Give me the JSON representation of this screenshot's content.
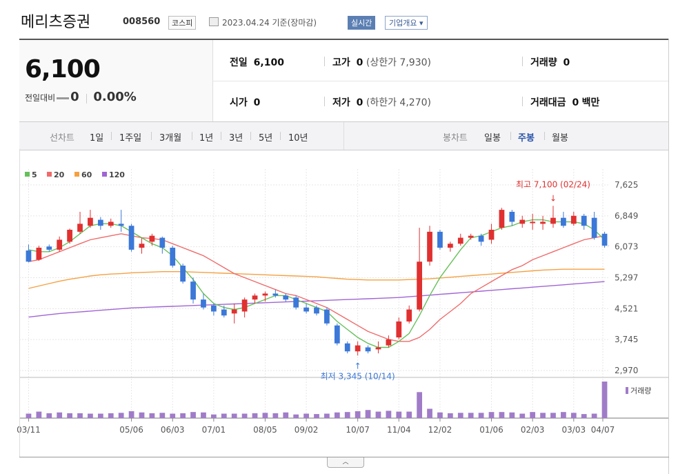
{
  "header": {
    "company": "메리츠증권",
    "code": "008560",
    "market": "코스피",
    "date": "2023.04.24 기준(장마감)",
    "live_button": "실시간",
    "company_info_button": "기업개요"
  },
  "quote": {
    "price": "6,100",
    "change_label": "전일대비",
    "change_value": "0",
    "change_pct": "0.00%",
    "prev_close_label": "전일",
    "prev_close": "6,100",
    "high_label": "고가",
    "high": "0",
    "upper_limit": "(상한가 7,930)",
    "volume_label": "거래량",
    "volume": "0",
    "open_label": "시가",
    "open": "0",
    "low_label": "저가",
    "low": "0",
    "lower_limit": "(하한가 4,270)",
    "value_label": "거래대금",
    "value": "0",
    "value_unit": "백만"
  },
  "period_bar": {
    "line_label": "선차트",
    "periods": [
      "1일",
      "1주일",
      "3개월",
      "1년",
      "3년",
      "5년",
      "10년"
    ],
    "candle_label": "봉차트",
    "candle_types": [
      "일봉",
      "주봉",
      "월봉"
    ],
    "active_candle": "주봉"
  },
  "colors": {
    "up": "#e03030",
    "down": "#3b78d8",
    "ma5": "#66c05a",
    "ma20": "#f06a6a",
    "ma60": "#f5a040",
    "ma120": "#a064d4",
    "volume": "#a07cc8"
  },
  "chart_data": {
    "type": "candlestick",
    "legend": [
      {
        "name": "5",
        "color": "#66c05a"
      },
      {
        "name": "20",
        "color": "#f06a6a"
      },
      {
        "name": "60",
        "color": "#f5a040"
      },
      {
        "name": "120",
        "color": "#a064d4"
      }
    ],
    "y_ticks": [
      "7,625",
      "6,849",
      "6,073",
      "5,297",
      "4,521",
      "3,745",
      "2,970"
    ],
    "ylim": [
      2970,
      7625
    ],
    "x_ticks": [
      "03/11",
      "05/06",
      "06/03",
      "07/01",
      "08/05",
      "09/02",
      "10/07",
      "11/04",
      "12/02",
      "01/06",
      "02/03",
      "03/03",
      "04/07"
    ],
    "annotations": {
      "high_label": "최고 7,100 (02/24)",
      "low_label": "최저 3,345 (10/14)"
    },
    "volume_legend": "거래량",
    "candles": [
      [
        5980,
        5700,
        6130,
        5680
      ],
      [
        5750,
        6050,
        6100,
        5720
      ],
      [
        6080,
        6000,
        6130,
        5950
      ],
      [
        6000,
        6250,
        6330,
        5950
      ],
      [
        6200,
        6500,
        6530,
        6150
      ],
      [
        6450,
        6650,
        6950,
        6400
      ],
      [
        6600,
        6800,
        7000,
        6550
      ],
      [
        6750,
        6600,
        6820,
        6500
      ],
      [
        6600,
        6700,
        6780,
        6550
      ],
      [
        6650,
        6600,
        7000,
        6450
      ],
      [
        6600,
        6000,
        6650,
        5950
      ],
      [
        6050,
        6150,
        6300,
        5900
      ],
      [
        6200,
        6350,
        6400,
        6100
      ],
      [
        6300,
        6050,
        6330,
        5900
      ],
      [
        6050,
        5600,
        6100,
        5550
      ],
      [
        5600,
        5200,
        5650,
        5150
      ],
      [
        5200,
        4750,
        5300,
        4650
      ],
      [
        4750,
        4550,
        4900,
        4500
      ],
      [
        4600,
        4450,
        4650,
        4350
      ],
      [
        4500,
        4350,
        4600,
        4300
      ],
      [
        4400,
        4500,
        4650,
        4150
      ],
      [
        4450,
        4750,
        4800,
        4300
      ],
      [
        4750,
        4850,
        4900,
        4650
      ],
      [
        4850,
        4900,
        4950,
        4700
      ],
      [
        4900,
        4850,
        5000,
        4800
      ],
      [
        4850,
        4750,
        4900,
        4700
      ],
      [
        4800,
        4550,
        4850,
        4500
      ],
      [
        4550,
        4450,
        4650,
        4400
      ],
      [
        4550,
        4400,
        4600,
        4350
      ],
      [
        4500,
        4150,
        4550,
        4100
      ],
      [
        4100,
        3650,
        4150,
        3600
      ],
      [
        3650,
        3450,
        3700,
        3400
      ],
      [
        3450,
        3600,
        3700,
        3345
      ],
      [
        3550,
        3450,
        3600,
        3400
      ],
      [
        3500,
        3550,
        3700,
        3400
      ],
      [
        3600,
        3750,
        3850,
        3550
      ],
      [
        3800,
        4200,
        4300,
        3750
      ],
      [
        4200,
        4500,
        4600,
        4150
      ],
      [
        4500,
        5700,
        6550,
        4450
      ],
      [
        5700,
        6450,
        6600,
        5600
      ],
      [
        6450,
        6050,
        6500,
        6000
      ],
      [
        6050,
        6150,
        6200,
        5950
      ],
      [
        6150,
        6300,
        6400,
        6100
      ],
      [
        6300,
        6350,
        6400,
        6250
      ],
      [
        6350,
        6200,
        6400,
        6100
      ],
      [
        6250,
        6500,
        6650,
        6150
      ],
      [
        6550,
        7000,
        7050,
        6500
      ],
      [
        6950,
        6700,
        7000,
        6600
      ],
      [
        6650,
        6750,
        6850,
        6550
      ],
      [
        6700,
        6700,
        6900,
        6500
      ],
      [
        6650,
        6700,
        6850,
        6500
      ],
      [
        6650,
        6800,
        7100,
        6550
      ],
      [
        6800,
        6600,
        6950,
        6550
      ],
      [
        6650,
        6850,
        6950,
        6600
      ],
      [
        6850,
        6600,
        6900,
        6500
      ],
      [
        6800,
        6300,
        6950,
        6250
      ],
      [
        6400,
        6100,
        6450,
        6050
      ]
    ],
    "ma5": [
      6000,
      5950,
      5950,
      6050,
      6200,
      6400,
      6600,
      6650,
      6650,
      6600,
      6450,
      6300,
      6150,
      6050,
      5850,
      5550,
      5250,
      4900,
      4650,
      4550,
      4500,
      4550,
      4650,
      4750,
      4850,
      4850,
      4750,
      4650,
      4550,
      4450,
      4200,
      4000,
      3800,
      3650,
      3550,
      3550,
      3700,
      3900,
      4350,
      4850,
      5300,
      5650,
      6000,
      6300,
      6350,
      6450,
      6550,
      6600,
      6700,
      6750,
      6750,
      6700,
      6700,
      6700,
      6650,
      6500,
      6250
    ],
    "ma20": [
      5700,
      5750,
      5850,
      5950,
      6050,
      6150,
      6250,
      6300,
      6350,
      6400,
      6350,
      6300,
      6280,
      6250,
      6150,
      6050,
      5950,
      5850,
      5700,
      5550,
      5400,
      5300,
      5200,
      5100,
      5000,
      4900,
      4850,
      4750,
      4650,
      4550,
      4400,
      4250,
      4100,
      3950,
      3850,
      3750,
      3700,
      3700,
      3800,
      4000,
      4250,
      4450,
      4650,
      4900,
      5050,
      5200,
      5350,
      5500,
      5600,
      5750,
      5850,
      5950,
      6050,
      6150,
      6250,
      6300,
      6350
    ],
    "ma60": [
      5030,
      5090,
      5150,
      5210,
      5260,
      5300,
      5340,
      5370,
      5390,
      5400,
      5420,
      5430,
      5440,
      5450,
      5450,
      5450,
      5440,
      5430,
      5420,
      5410,
      5400,
      5390,
      5380,
      5370,
      5360,
      5350,
      5340,
      5330,
      5320,
      5300,
      5280,
      5260,
      5250,
      5240,
      5240,
      5240,
      5240,
      5250,
      5260,
      5270,
      5290,
      5310,
      5330,
      5350,
      5370,
      5390,
      5410,
      5430,
      5450,
      5470,
      5490,
      5500,
      5510,
      5510,
      5510,
      5510,
      5510
    ],
    "ma120": [
      4310,
      4340,
      4370,
      4400,
      4420,
      4440,
      4460,
      4480,
      4500,
      4520,
      4540,
      4550,
      4560,
      4570,
      4580,
      4590,
      4600,
      4610,
      4620,
      4630,
      4640,
      4650,
      4660,
      4670,
      4680,
      4690,
      4700,
      4710,
      4720,
      4730,
      4740,
      4750,
      4760,
      4770,
      4780,
      4790,
      4800,
      4820,
      4840,
      4860,
      4880,
      4900,
      4920,
      4940,
      4960,
      4980,
      5000,
      5020,
      5040,
      5060,
      5080,
      5100,
      5120,
      5140,
      5160,
      5180,
      5200
    ],
    "volume": [
      1.1,
      1.6,
      1.2,
      1.4,
      1.2,
      1.2,
      1.1,
      1.1,
      1.2,
      1.3,
      1.7,
      1.4,
      1.2,
      1.3,
      1.1,
      1.2,
      1.5,
      1.4,
      0.9,
      1.1,
      1.1,
      1.1,
      1.2,
      1.3,
      1.2,
      1.4,
      0.9,
      1.1,
      1.0,
      1.1,
      1.4,
      1.5,
      1.7,
      2.0,
      1.6,
      1.8,
      1.6,
      1.6,
      6.4,
      2.3,
      1.4,
      1.2,
      1.3,
      1.3,
      1.3,
      1.5,
      1.5,
      1.4,
      1.1,
      1.5,
      1.3,
      1.3,
      1.5,
      1.3,
      1.0,
      1.1,
      9.0
    ]
  }
}
